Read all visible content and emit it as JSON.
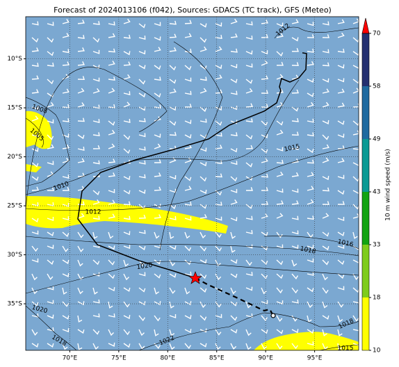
{
  "title": "Forecast of 2024013106 (f042), Sources: GDACS (TC track), GFS (Meteo)",
  "map": {
    "xlim": [
      65.5,
      99.5
    ],
    "ylim": [
      -39.75,
      -5.7
    ],
    "lon_ticks": [
      {
        "value": 70,
        "label": "70°E"
      },
      {
        "value": 75,
        "label": "75°E"
      },
      {
        "value": 80,
        "label": "80°E"
      },
      {
        "value": 85,
        "label": "85°E"
      },
      {
        "value": 90,
        "label": "90°E"
      },
      {
        "value": 95,
        "label": "95°E"
      }
    ],
    "lat_ticks": [
      {
        "value": -10,
        "label": "10°S"
      },
      {
        "value": -15,
        "label": "15°S"
      },
      {
        "value": -20,
        "label": "20°S"
      },
      {
        "value": -25,
        "label": "25°S"
      },
      {
        "value": -30,
        "label": "30°S"
      },
      {
        "value": -35,
        "label": "35°S"
      }
    ],
    "grid": true
  },
  "contour_labels": [
    1012,
    1008,
    1005,
    1010,
    1012,
    1015,
    1018,
    1016,
    1020,
    1020,
    1018,
    1022,
    1018,
    1015
  ],
  "colorbar": {
    "label": "10 m wind speed (m/s)",
    "levels": [
      10,
      18,
      33,
      43,
      49,
      58,
      70
    ],
    "colors": [
      "#ffff00",
      "#7fcc1c",
      "#12a312",
      "#0b9a94",
      "#1f6aa0",
      "#243070"
    ],
    "extend_color": "#ff0000"
  }
}
